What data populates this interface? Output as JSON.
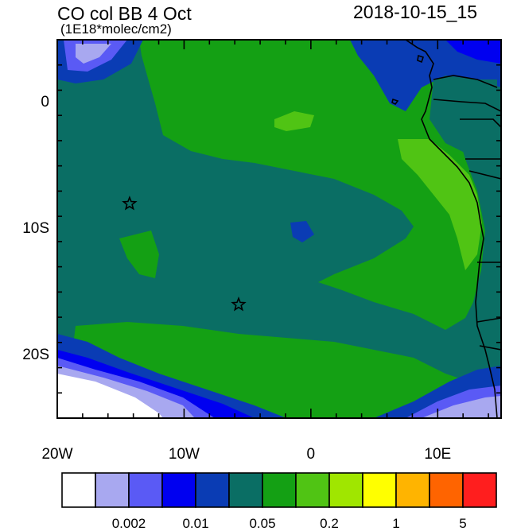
{
  "title_left": "CO col BB 4 Oct",
  "title_right": "2018-10-15_15",
  "subtitle": "(1E18*molec/cm2)",
  "lat_labels": [
    {
      "lat": 0,
      "label": "0"
    },
    {
      "lat": -10,
      "label": "10S"
    },
    {
      "lat": -20,
      "label": "20S"
    }
  ],
  "lon_labels": [
    {
      "lon": -20,
      "label": "20W"
    },
    {
      "lon": -10,
      "label": "10W"
    },
    {
      "lon": 0,
      "label": "0"
    },
    {
      "lon": 10,
      "label": "10E"
    }
  ],
  "extent": {
    "lon_min": -20,
    "lon_max": 15,
    "lat_min": -25,
    "lat_max": 5
  },
  "markers": [
    {
      "name": "star-marker-1",
      "lon": -14.3,
      "lat": -8.0
    },
    {
      "name": "star-marker-2",
      "lon": -5.7,
      "lat": -16.0
    }
  ],
  "colorbar": {
    "colors": [
      "#ffffff",
      "#a8a8f0",
      "#5a5af5",
      "#0000f0",
      "#0a3cb4",
      "#0a6e64",
      "#14a014",
      "#50c414",
      "#a0e600",
      "#ffff00",
      "#ffb400",
      "#ff6400",
      "#ff1e1e"
    ],
    "labels": [
      {
        "after_box": 2,
        "label": "0.002"
      },
      {
        "after_box": 4,
        "label": "0.01"
      },
      {
        "after_box": 6,
        "label": "0.05"
      },
      {
        "after_box": 8,
        "label": "0.2"
      },
      {
        "after_box": 10,
        "label": "1"
      },
      {
        "after_box": 12,
        "label": "5"
      }
    ]
  }
}
